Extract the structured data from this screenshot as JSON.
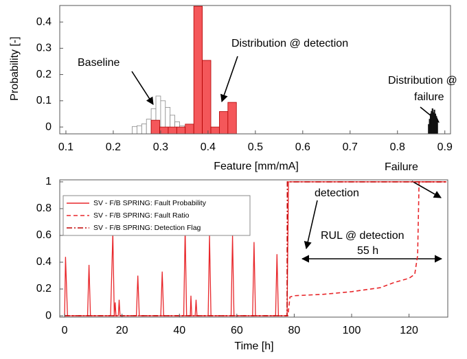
{
  "chart_data": [
    {
      "type": "histogram",
      "xlabel": "Feature [mm/mA]",
      "ylabel": "Probability [-]",
      "xlim": [
        0.087,
        0.912
      ],
      "ylim": [
        -0.026,
        0.463
      ],
      "xticks": [
        0.1,
        0.2,
        0.3,
        0.4,
        0.5,
        0.6,
        0.7,
        0.8,
        0.9
      ],
      "yticks": [
        0,
        0.1,
        0.2,
        0.3,
        0.4
      ],
      "series": [
        {
          "color": "#ffffff",
          "edgecolor": "#888888",
          "bins": [
            0.24,
            0.25,
            0.26,
            0.27,
            0.28,
            0.29,
            0.3,
            0.31,
            0.32,
            0.33,
            0.34,
            0.35
          ],
          "values": [
            0.002,
            0.005,
            0.012,
            0.03,
            0.07,
            0.118,
            0.1,
            0.075,
            0.045,
            0.02,
            0.005
          ]
        },
        {
          "color": "#f4575a",
          "edgecolor": "#b00000",
          "bins": [
            0.28,
            0.298,
            0.316,
            0.334,
            0.352,
            0.37,
            0.388,
            0.406,
            0.424,
            0.442,
            0.46
          ],
          "values": [
            0.026,
            0,
            0,
            0,
            0.011,
            0.46,
            0.254,
            0,
            0.059,
            0.094
          ]
        },
        {
          "color": "#111111",
          "edgecolor": "#111111",
          "bins": [
            0.865,
            0.867,
            0.869,
            0.871,
            0.873,
            0.875,
            0.877,
            0.879,
            0.881,
            0.883,
            0.885
          ],
          "values": [
            0.01,
            0.03,
            0.05,
            0.06,
            0.07,
            0.055,
            0.065,
            0.05,
            0.04,
            0.02
          ]
        }
      ],
      "annotations": [
        "Baseline",
        "Distribution @ detection",
        "Distribution @",
        "failure"
      ]
    },
    {
      "type": "line",
      "xlabel": "Time [h]",
      "xlim": [
        -1.7,
        133.5
      ],
      "ylim": [
        -0.01,
        1.015
      ],
      "xticks": [
        0,
        20,
        40,
        60,
        80,
        100,
        120
      ],
      "yticks": [
        0,
        0.2,
        0.4,
        0.6,
        0.8,
        1
      ],
      "series": [
        {
          "name": "SV - F/B SPRING: Fault Probability",
          "color": "#e8262a",
          "style": "solid",
          "x": [
            0,
            0.3,
            1,
            8,
            8.5,
            9,
            16,
            16.8,
            17.3,
            17.6,
            17.9,
            18.7,
            19,
            19.3,
            25,
            25.5,
            26,
            33.5,
            34,
            34.5,
            41.5,
            42,
            42.5,
            43.8,
            44,
            44.3,
            45.5,
            45.8,
            46.1,
            50,
            50.5,
            51,
            58,
            58.5,
            59,
            65.5,
            66,
            66.5,
            73.5,
            74,
            74.5,
            77.5,
            78,
            133
          ],
          "values": [
            0,
            0.44,
            0,
            0,
            0.38,
            0,
            0,
            0.62,
            0,
            0.1,
            0,
            0,
            0.12,
            0,
            0,
            0.3,
            0,
            0,
            0.33,
            0,
            0,
            0.65,
            0,
            0,
            0.15,
            0,
            0,
            0.12,
            0,
            0,
            0.6,
            0,
            0,
            0.6,
            0,
            0,
            0.55,
            0,
            0,
            0.46,
            0,
            0,
            1,
            1
          ]
        },
        {
          "name": "SV - F/B SPRING: Fault Ratio",
          "color": "#e8262a",
          "style": "dashed",
          "x": [
            0,
            77.8,
            78.5,
            80,
            90,
            100,
            110,
            115,
            120,
            122,
            123,
            123.5,
            133
          ],
          "values": [
            0,
            0,
            0.14,
            0.15,
            0.16,
            0.18,
            0.21,
            0.25,
            0.28,
            0.31,
            0.45,
            1,
            1
          ]
        },
        {
          "name": "SV - F/B SPRING: Detection Flag",
          "color": "#c00000",
          "style": "dashdot",
          "x": [
            0,
            77.5,
            77.6,
            133
          ],
          "values": [
            0,
            0,
            1,
            1
          ]
        }
      ],
      "annotations": [
        "detection",
        "Failure",
        "RUL @ detection",
        "55 h"
      ]
    }
  ]
}
